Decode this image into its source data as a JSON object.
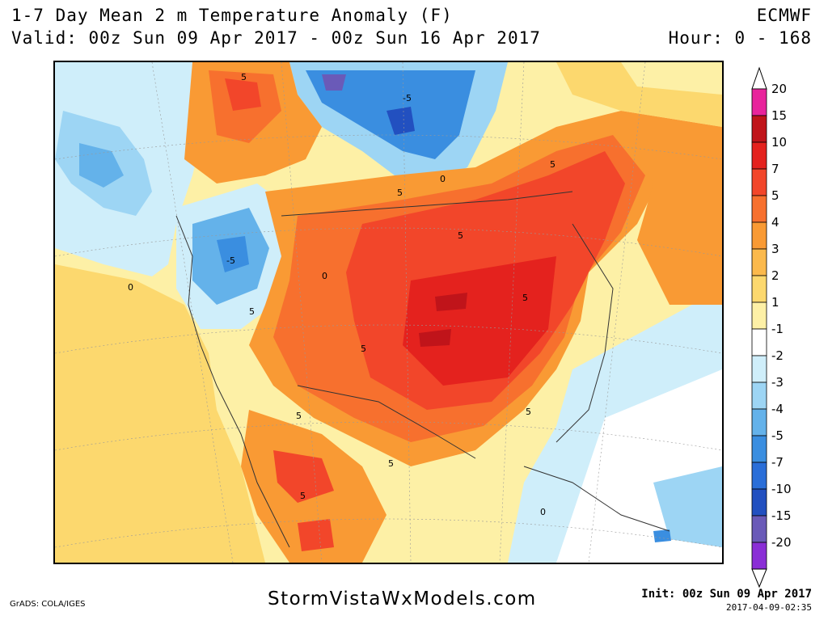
{
  "header": {
    "title": "1-7 Day Mean 2 m Temperature Anomaly (F)",
    "valid": "Valid: 00z Sun 09 Apr 2017 - 00z Sun 16 Apr 2017",
    "model": "ECMWF",
    "hour": "Hour: 0 - 168"
  },
  "colorbar": {
    "levels": [
      {
        "label": "20",
        "color": "#e8249c"
      },
      {
        "label": "15",
        "color": "#c0141a"
      },
      {
        "label": "10",
        "color": "#e4221e"
      },
      {
        "label": "7",
        "color": "#f2462a"
      },
      {
        "label": "5",
        "color": "#f7702e"
      },
      {
        "label": "4",
        "color": "#f99a34"
      },
      {
        "label": "3",
        "color": "#fbb94c"
      },
      {
        "label": "2",
        "color": "#fcd86e"
      },
      {
        "label": "1",
        "color": "#fdf0a6"
      },
      {
        "label": "-1",
        "color": "#ffffff"
      },
      {
        "label": "-2",
        "color": "#cfeefa"
      },
      {
        "label": "-3",
        "color": "#9dd5f4"
      },
      {
        "label": "-4",
        "color": "#64b2ea"
      },
      {
        "label": "-5",
        "color": "#3a8ee0"
      },
      {
        "label": "-7",
        "color": "#2a6ed8"
      },
      {
        "label": "-10",
        "color": "#2250c0"
      },
      {
        "label": "-15",
        "color": "#6a5ab8"
      },
      {
        "label": "-20",
        "color": "#8a2ed6"
      }
    ],
    "top_label": "20",
    "bottom_label": "-20"
  },
  "map": {
    "contour_labels": [
      "5",
      "5",
      "-5",
      "-5",
      "0",
      "0",
      "5",
      "5",
      "5",
      "5",
      "5",
      "5",
      "5",
      "5",
      "0",
      "0",
      "5"
    ]
  },
  "footer": {
    "site": "StormVistaWxModels.com",
    "grads": "GrADS: COLA/IGES",
    "init": "Init: 00z Sun 09 Apr 2017",
    "stamp": "2017-04-09-02:35"
  }
}
